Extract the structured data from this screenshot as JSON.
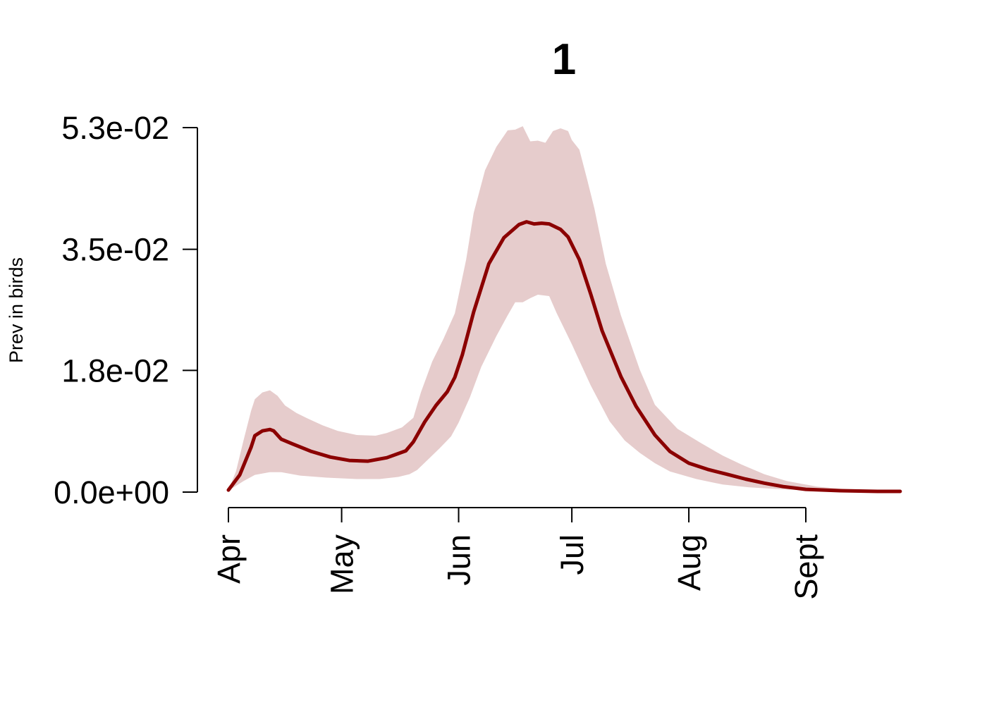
{
  "chart_data": {
    "type": "line",
    "title": "1",
    "xlabel": "",
    "ylabel": "Prev in birds",
    "x_ticks": [
      {
        "date": "2000-04-01",
        "label": "Apr"
      },
      {
        "date": "2000-05-01",
        "label": "May"
      },
      {
        "date": "2000-06-01",
        "label": "Jun"
      },
      {
        "date": "2000-07-01",
        "label": "Jul"
      },
      {
        "date": "2000-08-01",
        "label": "Aug"
      },
      {
        "date": "2000-09-01",
        "label": "Sept"
      }
    ],
    "y_ticks": [
      {
        "value": 0.0,
        "label": "0.0e+00"
      },
      {
        "value": 0.0177,
        "label": "1.8e-02"
      },
      {
        "value": 0.0353,
        "label": "3.5e-02"
      },
      {
        "value": 0.053,
        "label": "5.3e-02"
      }
    ],
    "ylim": [
      0,
      0.053
    ],
    "grid": false,
    "colors": {
      "line": "#8b0000",
      "band": "#e6cccc"
    },
    "series": [
      {
        "type": "line",
        "points": [
          [
            "2000-04-01",
            0.0003
          ],
          [
            "2000-04-04",
            0.0025
          ],
          [
            "2000-04-07",
            0.0065
          ],
          [
            "2000-04-08",
            0.0082
          ],
          [
            "2000-04-10",
            0.0089
          ],
          [
            "2000-04-12",
            0.0091
          ],
          [
            "2000-04-13",
            0.0089
          ],
          [
            "2000-04-15",
            0.0077
          ],
          [
            "2000-04-18",
            0.007
          ],
          [
            "2000-04-23",
            0.0059
          ],
          [
            "2000-04-28",
            0.0051
          ],
          [
            "2000-05-03",
            0.0046
          ],
          [
            "2000-05-08",
            0.0045
          ],
          [
            "2000-05-13",
            0.005
          ],
          [
            "2000-05-18",
            0.006
          ],
          [
            "2000-05-20",
            0.0073
          ],
          [
            "2000-05-23",
            0.0102
          ],
          [
            "2000-05-26",
            0.0126
          ],
          [
            "2000-05-29",
            0.0146
          ],
          [
            "2000-05-31",
            0.0167
          ],
          [
            "2000-06-02",
            0.02
          ],
          [
            "2000-06-05",
            0.0262
          ],
          [
            "2000-06-09",
            0.0332
          ],
          [
            "2000-06-13",
            0.037
          ],
          [
            "2000-06-17",
            0.0389
          ],
          [
            "2000-06-19",
            0.0393
          ],
          [
            "2000-06-21",
            0.039
          ],
          [
            "2000-06-23",
            0.0391
          ],
          [
            "2000-06-25",
            0.039
          ],
          [
            "2000-06-28",
            0.0382
          ],
          [
            "2000-06-30",
            0.0371
          ],
          [
            "2000-07-03",
            0.0338
          ],
          [
            "2000-07-06",
            0.0288
          ],
          [
            "2000-07-09",
            0.0235
          ],
          [
            "2000-07-14",
            0.0168
          ],
          [
            "2000-07-18",
            0.0125
          ],
          [
            "2000-07-23",
            0.0083
          ],
          [
            "2000-07-27",
            0.0059
          ],
          [
            "2000-08-01",
            0.0042
          ],
          [
            "2000-08-06",
            0.0033
          ],
          [
            "2000-08-11",
            0.0026
          ],
          [
            "2000-08-16",
            0.0019
          ],
          [
            "2000-08-21",
            0.0013
          ],
          [
            "2000-08-26",
            0.0008
          ],
          [
            "2000-09-01",
            0.0004
          ],
          [
            "2000-09-10",
            0.0002
          ],
          [
            "2000-09-20",
            0.0001
          ],
          [
            "2000-09-26",
            0.0001
          ]
        ]
      },
      {
        "type": "band",
        "upper": [
          [
            "2000-04-01",
            0.0003
          ],
          [
            "2000-04-03",
            0.003
          ],
          [
            "2000-04-05",
            0.0075
          ],
          [
            "2000-04-07",
            0.0118
          ],
          [
            "2000-04-08",
            0.0135
          ],
          [
            "2000-04-10",
            0.0145
          ],
          [
            "2000-04-12",
            0.0148
          ],
          [
            "2000-04-14",
            0.014
          ],
          [
            "2000-04-16",
            0.0126
          ],
          [
            "2000-04-19",
            0.0115
          ],
          [
            "2000-04-22",
            0.0107
          ],
          [
            "2000-04-26",
            0.0097
          ],
          [
            "2000-04-30",
            0.0089
          ],
          [
            "2000-05-05",
            0.0083
          ],
          [
            "2000-05-10",
            0.0082
          ],
          [
            "2000-05-13",
            0.0086
          ],
          [
            "2000-05-17",
            0.0094
          ],
          [
            "2000-05-20",
            0.0108
          ],
          [
            "2000-05-22",
            0.0145
          ],
          [
            "2000-05-25",
            0.019
          ],
          [
            "2000-05-28",
            0.0223
          ],
          [
            "2000-05-31",
            0.026
          ],
          [
            "2000-06-03",
            0.0338
          ],
          [
            "2000-06-05",
            0.0406
          ],
          [
            "2000-06-08",
            0.0468
          ],
          [
            "2000-06-11",
            0.0502
          ],
          [
            "2000-06-14",
            0.0526
          ],
          [
            "2000-06-16",
            0.0527
          ],
          [
            "2000-06-18",
            0.0532
          ],
          [
            "2000-06-20",
            0.051
          ],
          [
            "2000-06-22",
            0.0511
          ],
          [
            "2000-06-24",
            0.0508
          ],
          [
            "2000-06-26",
            0.0525
          ],
          [
            "2000-06-28",
            0.0529
          ],
          [
            "2000-06-30",
            0.0525
          ],
          [
            "2000-07-01",
            0.0512
          ],
          [
            "2000-07-03",
            0.0498
          ],
          [
            "2000-07-05",
            0.0456
          ],
          [
            "2000-07-07",
            0.0412
          ],
          [
            "2000-07-10",
            0.0332
          ],
          [
            "2000-07-14",
            0.0257
          ],
          [
            "2000-07-19",
            0.0178
          ],
          [
            "2000-07-23",
            0.0127
          ],
          [
            "2000-07-29",
            0.0092
          ],
          [
            "2000-08-04",
            0.0072
          ],
          [
            "2000-08-10",
            0.0053
          ],
          [
            "2000-08-15",
            0.004
          ],
          [
            "2000-08-21",
            0.0026
          ],
          [
            "2000-08-27",
            0.0016
          ],
          [
            "2000-09-04",
            0.0008
          ],
          [
            "2000-09-14",
            0.0003
          ],
          [
            "2000-09-26",
            0.0001
          ]
        ],
        "lower": [
          [
            "2000-04-01",
            0.0002
          ],
          [
            "2000-04-05",
            0.0016
          ],
          [
            "2000-04-08",
            0.0025
          ],
          [
            "2000-04-12",
            0.0029
          ],
          [
            "2000-04-15",
            0.0029
          ],
          [
            "2000-04-20",
            0.0024
          ],
          [
            "2000-04-27",
            0.0021
          ],
          [
            "2000-05-05",
            0.0019
          ],
          [
            "2000-05-11",
            0.0019
          ],
          [
            "2000-05-16",
            0.0022
          ],
          [
            "2000-05-19",
            0.0026
          ],
          [
            "2000-05-21",
            0.0032
          ],
          [
            "2000-05-24",
            0.0048
          ],
          [
            "2000-05-27",
            0.0064
          ],
          [
            "2000-05-30",
            0.0081
          ],
          [
            "2000-06-01",
            0.0101
          ],
          [
            "2000-06-04",
            0.0138
          ],
          [
            "2000-06-07",
            0.0182
          ],
          [
            "2000-06-11",
            0.0227
          ],
          [
            "2000-06-14",
            0.0257
          ],
          [
            "2000-06-16",
            0.0276
          ],
          [
            "2000-06-18",
            0.0276
          ],
          [
            "2000-06-20",
            0.0282
          ],
          [
            "2000-06-22",
            0.0287
          ],
          [
            "2000-06-25",
            0.0285
          ],
          [
            "2000-06-27",
            0.026
          ],
          [
            "2000-07-01",
            0.0215
          ],
          [
            "2000-07-06",
            0.0155
          ],
          [
            "2000-07-11",
            0.0103
          ],
          [
            "2000-07-15",
            0.0075
          ],
          [
            "2000-07-19",
            0.0057
          ],
          [
            "2000-07-23",
            0.0042
          ],
          [
            "2000-07-27",
            0.003
          ],
          [
            "2000-08-03",
            0.0019
          ],
          [
            "2000-08-10",
            0.0011
          ],
          [
            "2000-08-17",
            0.0007
          ],
          [
            "2000-08-26",
            0.0004
          ],
          [
            "2000-09-04",
            0.0002
          ],
          [
            "2000-09-26",
            0.0001
          ]
        ]
      }
    ]
  }
}
